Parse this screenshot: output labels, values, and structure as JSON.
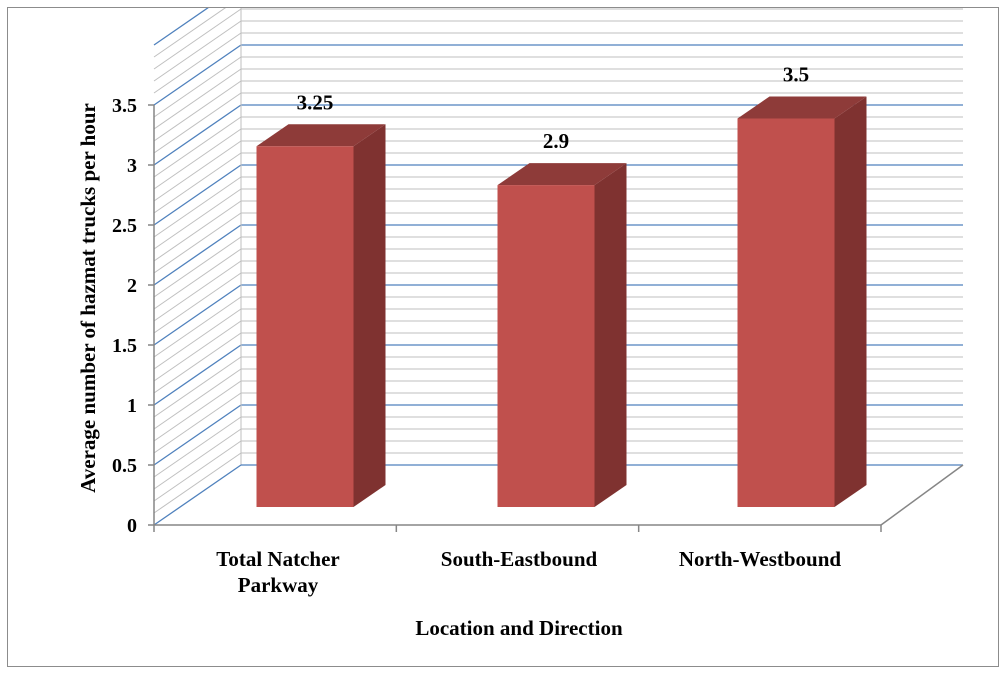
{
  "chart_data": {
    "type": "bar",
    "style": "3d-column",
    "title": "",
    "xlabel": "Location and Direction",
    "ylabel": "Average number of hazmat trucks per hour",
    "categories": [
      [
        "Total Natcher",
        "Parkway"
      ],
      [
        "South-Eastbound"
      ],
      [
        "North-Westbound"
      ]
    ],
    "series": [
      {
        "values": [
          3.25,
          2.9,
          3.5
        ],
        "labels": [
          "3.25",
          "2.9",
          "3.5"
        ]
      }
    ],
    "ylim": [
      0,
      3.5
    ],
    "yticks": [
      "0",
      "0.5",
      "1",
      "1.5",
      "2",
      "2.5",
      "3",
      "3.5"
    ],
    "grid": true,
    "legend": "none",
    "colors": {
      "bar_front": "#c0504d",
      "bar_side": "#7f3230",
      "bar_top": "#8e3b39",
      "major_grid": "#4f81bd",
      "minor_grid": "#bfbfbf",
      "axis": "#868686"
    }
  }
}
